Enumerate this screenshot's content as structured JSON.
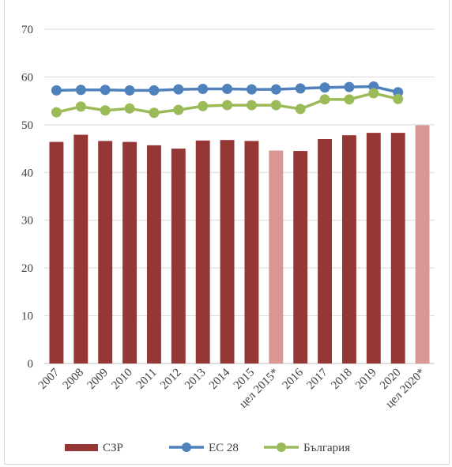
{
  "chart_data": {
    "type": "bar",
    "categories": [
      "2007",
      "2008",
      "2009",
      "2010",
      "2011",
      "2012",
      "2013",
      "2014",
      "2015",
      "цел 2015*",
      "2016",
      "2017",
      "2018",
      "2019",
      "2020",
      "цел 2020*"
    ],
    "series": [
      {
        "name": "СЗР",
        "type": "bar",
        "color": "#953735",
        "target_color": "#d99694",
        "target_categories": [
          "цел 2015*",
          "цел 2020*"
        ],
        "values": [
          46.4,
          47.9,
          46.6,
          46.4,
          45.7,
          45.0,
          46.7,
          46.8,
          46.6,
          44.6,
          44.5,
          47.0,
          47.8,
          48.3,
          48.3,
          49.9
        ]
      },
      {
        "name": "ЕС 28",
        "type": "line",
        "color": "#4f81bd",
        "values": [
          57.2,
          57.3,
          57.3,
          57.2,
          57.2,
          57.4,
          57.5,
          57.5,
          57.4,
          57.4,
          57.6,
          57.8,
          57.9,
          58.0,
          56.8,
          null
        ]
      },
      {
        "name": "България",
        "type": "line",
        "color": "#9bbb59",
        "values": [
          52.6,
          53.8,
          53.0,
          53.4,
          52.5,
          53.1,
          53.9,
          54.1,
          54.1,
          54.1,
          53.3,
          55.3,
          55.3,
          56.6,
          55.4,
          null
        ]
      }
    ],
    "ylim": [
      0,
      70
    ],
    "yticks": [
      "0",
      "10",
      "20",
      "30",
      "40",
      "50",
      "60",
      "70"
    ],
    "grid": true,
    "legend_position": "bottom"
  }
}
